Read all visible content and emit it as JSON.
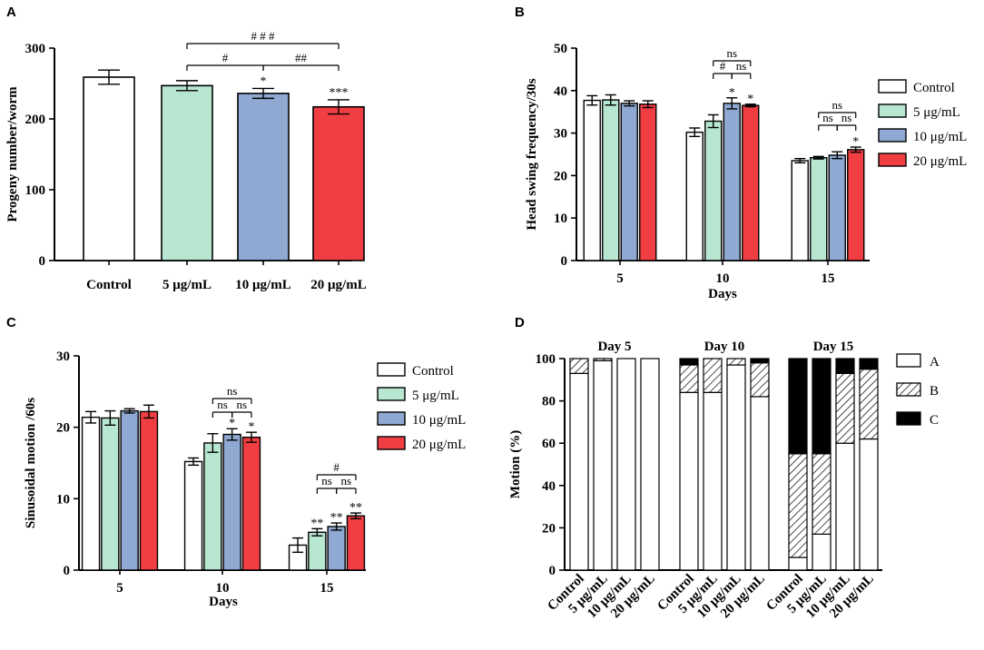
{
  "chart_data": [
    {
      "panel": "A",
      "type": "bar",
      "categories": [
        "Control",
        "5 μg/mL",
        "10 μg/mL",
        "20 μg/mL"
      ],
      "values": [
        259,
        247,
        236,
        217
      ],
      "errors": [
        10,
        7,
        7,
        10
      ],
      "colors": [
        "#ffffff",
        "#b7e6d1",
        "#8fa9d2",
        "#f13e43"
      ],
      "ylabel": "Progeny number/worm",
      "ylim": [
        0,
        300
      ],
      "yticks": [
        0,
        100,
        200,
        300
      ],
      "stars": [
        "",
        "",
        "*",
        "***"
      ],
      "brackets": [
        {
          "from": 1,
          "to": 2,
          "label": "#",
          "level": 1
        },
        {
          "from": 2,
          "to": 3,
          "label": "##",
          "level": 1
        },
        {
          "from": 1,
          "to": 3,
          "label": "# # #",
          "level": 2
        }
      ]
    },
    {
      "panel": "B",
      "type": "bar",
      "categories": [
        "5",
        "10",
        "15"
      ],
      "xlabel": "Days",
      "ylabel": "Head swing frequency/30s",
      "ylim": [
        0,
        50
      ],
      "yticks": [
        0,
        10,
        20,
        30,
        40,
        50
      ],
      "series": [
        {
          "name": "Control",
          "color": "#ffffff",
          "values": [
            37.7,
            30.2,
            23.5
          ],
          "errors": [
            1.1,
            1.0,
            0.5
          ],
          "stars": [
            "",
            "",
            ""
          ]
        },
        {
          "name": "5 μg/mL",
          "color": "#b7e6d1",
          "values": [
            37.8,
            32.8,
            24.2
          ],
          "errors": [
            1.2,
            1.5,
            0.3
          ],
          "stars": [
            "",
            "",
            ""
          ]
        },
        {
          "name": "10 μg/mL",
          "color": "#8fa9d2",
          "values": [
            37.0,
            37.0,
            24.8
          ],
          "errors": [
            0.6,
            1.3,
            0.8
          ],
          "stars": [
            "",
            "*",
            ""
          ]
        },
        {
          "name": "20 μg/mL",
          "color": "#f13e43",
          "values": [
            36.8,
            36.5,
            26.1
          ],
          "errors": [
            0.8,
            0.3,
            0.6
          ],
          "stars": [
            "",
            "*",
            "*"
          ]
        }
      ],
      "brackets": [
        {
          "group": 1,
          "from": 1,
          "to": 2,
          "label": "#",
          "level": 1
        },
        {
          "group": 1,
          "from": 2,
          "to": 3,
          "label": "ns",
          "level": 1
        },
        {
          "group": 1,
          "from": 1,
          "to": 3,
          "label": "ns",
          "level": 2
        },
        {
          "group": 2,
          "from": 1,
          "to": 2,
          "label": "ns",
          "level": 1
        },
        {
          "group": 2,
          "from": 2,
          "to": 3,
          "label": "ns",
          "level": 1
        },
        {
          "group": 2,
          "from": 1,
          "to": 3,
          "label": "ns",
          "level": 2
        }
      ]
    },
    {
      "panel": "C",
      "type": "bar",
      "categories": [
        "5",
        "10",
        "15"
      ],
      "xlabel": "Days",
      "ylabel": "Sinusoidal motion /60s",
      "ylim": [
        0,
        30
      ],
      "yticks": [
        0,
        10,
        20,
        30
      ],
      "series": [
        {
          "name": "Control",
          "color": "#ffffff",
          "values": [
            21.4,
            15.2,
            3.5
          ],
          "errors": [
            0.8,
            0.5,
            1.0
          ],
          "stars": [
            "",
            "",
            ""
          ]
        },
        {
          "name": "5 μg/mL",
          "color": "#b7e6d1",
          "values": [
            21.3,
            17.8,
            5.3
          ],
          "errors": [
            1.0,
            1.3,
            0.5
          ],
          "stars": [
            "",
            "",
            "**"
          ]
        },
        {
          "name": "10 μg/mL",
          "color": "#8fa9d2",
          "values": [
            22.3,
            19.0,
            6.1
          ],
          "errors": [
            0.3,
            0.8,
            0.5
          ],
          "stars": [
            "",
            "*",
            "**"
          ]
        },
        {
          "name": "20 μg/mL",
          "color": "#f13e43",
          "values": [
            22.2,
            18.6,
            7.6
          ],
          "errors": [
            0.9,
            0.7,
            0.4
          ],
          "stars": [
            "",
            "*",
            "**"
          ]
        }
      ],
      "brackets": [
        {
          "group": 1,
          "from": 1,
          "to": 2,
          "label": "ns",
          "level": 1
        },
        {
          "group": 1,
          "from": 2,
          "to": 3,
          "label": "ns",
          "level": 1
        },
        {
          "group": 1,
          "from": 1,
          "to": 3,
          "label": "ns",
          "level": 2
        },
        {
          "group": 2,
          "from": 1,
          "to": 2,
          "label": "ns",
          "level": 1
        },
        {
          "group": 2,
          "from": 2,
          "to": 3,
          "label": "ns",
          "level": 1
        },
        {
          "group": 2,
          "from": 1,
          "to": 3,
          "label": "#",
          "level": 2
        }
      ]
    },
    {
      "panel": "D",
      "type": "bar",
      "stacked": true,
      "ylabel": "Motion (%)",
      "ylim": [
        0,
        100
      ],
      "yticks": [
        0,
        20,
        40,
        60,
        80,
        100
      ],
      "groups": [
        {
          "title": "Day 5",
          "categories": [
            "Control",
            "5 μg/mL",
            "10 μg/mL",
            "20 μg/mL"
          ],
          "A": [
            93,
            99,
            100,
            100
          ],
          "B": [
            7,
            1,
            0,
            0
          ],
          "C": [
            0,
            0,
            0,
            0
          ]
        },
        {
          "title": "Day 10",
          "categories": [
            "Control",
            "5 μg/mL",
            "10 μg/mL",
            "20 μg/mL"
          ],
          "A": [
            84,
            84,
            97,
            82
          ],
          "B": [
            13,
            16,
            3,
            16
          ],
          "C": [
            3,
            0,
            0,
            2
          ]
        },
        {
          "title": "Day 15",
          "categories": [
            "Control",
            "5 μg/mL",
            "10 μg/mL",
            "20 μg/mL"
          ],
          "A": [
            6,
            17,
            60,
            62
          ],
          "B": [
            49,
            38,
            33,
            33
          ],
          "C": [
            45,
            45,
            7,
            5
          ]
        }
      ],
      "legend": [
        {
          "name": "A",
          "fill": "white"
        },
        {
          "name": "B",
          "fill": "hatch"
        },
        {
          "name": "C",
          "fill": "black"
        }
      ]
    }
  ]
}
